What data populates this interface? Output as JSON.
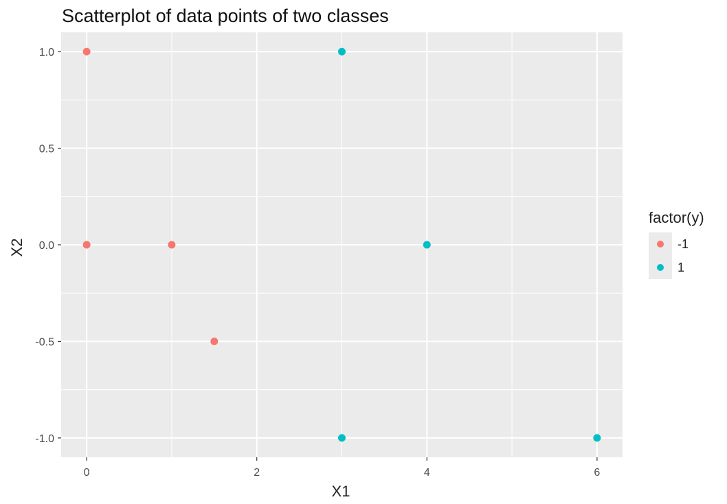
{
  "chart_data": {
    "type": "scatter",
    "title": "Scatterplot of data points of two classes",
    "xlabel": "X1",
    "ylabel": "X2",
    "xlim": [
      -0.3,
      6.3
    ],
    "ylim": [
      -1.1,
      1.1
    ],
    "x_ticks": [
      0,
      2,
      4,
      6
    ],
    "x_tick_labels": [
      "0",
      "2",
      "4",
      "6"
    ],
    "y_ticks": [
      -1.0,
      -0.5,
      0.0,
      0.5,
      1.0
    ],
    "y_tick_labels": [
      "-1.0",
      "-0.5",
      "0.0",
      "0.5",
      "1.0"
    ],
    "grid": true,
    "legend_position": "right",
    "legend_title": "factor(y)",
    "series": [
      {
        "name": "-1",
        "color": "#F8766D",
        "points": [
          [
            0,
            1
          ],
          [
            0,
            0
          ],
          [
            1,
            0
          ],
          [
            1.5,
            -0.5
          ]
        ]
      },
      {
        "name": "1",
        "color": "#00BFC4",
        "points": [
          [
            3,
            1
          ],
          [
            4,
            0
          ],
          [
            3,
            -1
          ],
          [
            6,
            -1
          ]
        ]
      }
    ]
  }
}
